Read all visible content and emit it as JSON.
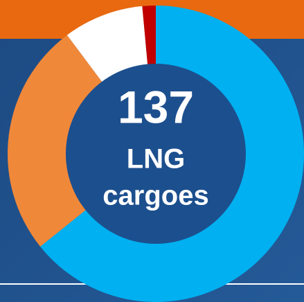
{
  "chart_data": {
    "type": "donut",
    "title": "137",
    "label_lines": [
      "LNG",
      "cargoes"
    ],
    "values": [
      88,
      35,
      12,
      2
    ],
    "colors": [
      "#00b0f0",
      "#f0883a",
      "#ffffff",
      "#c00000"
    ]
  }
}
